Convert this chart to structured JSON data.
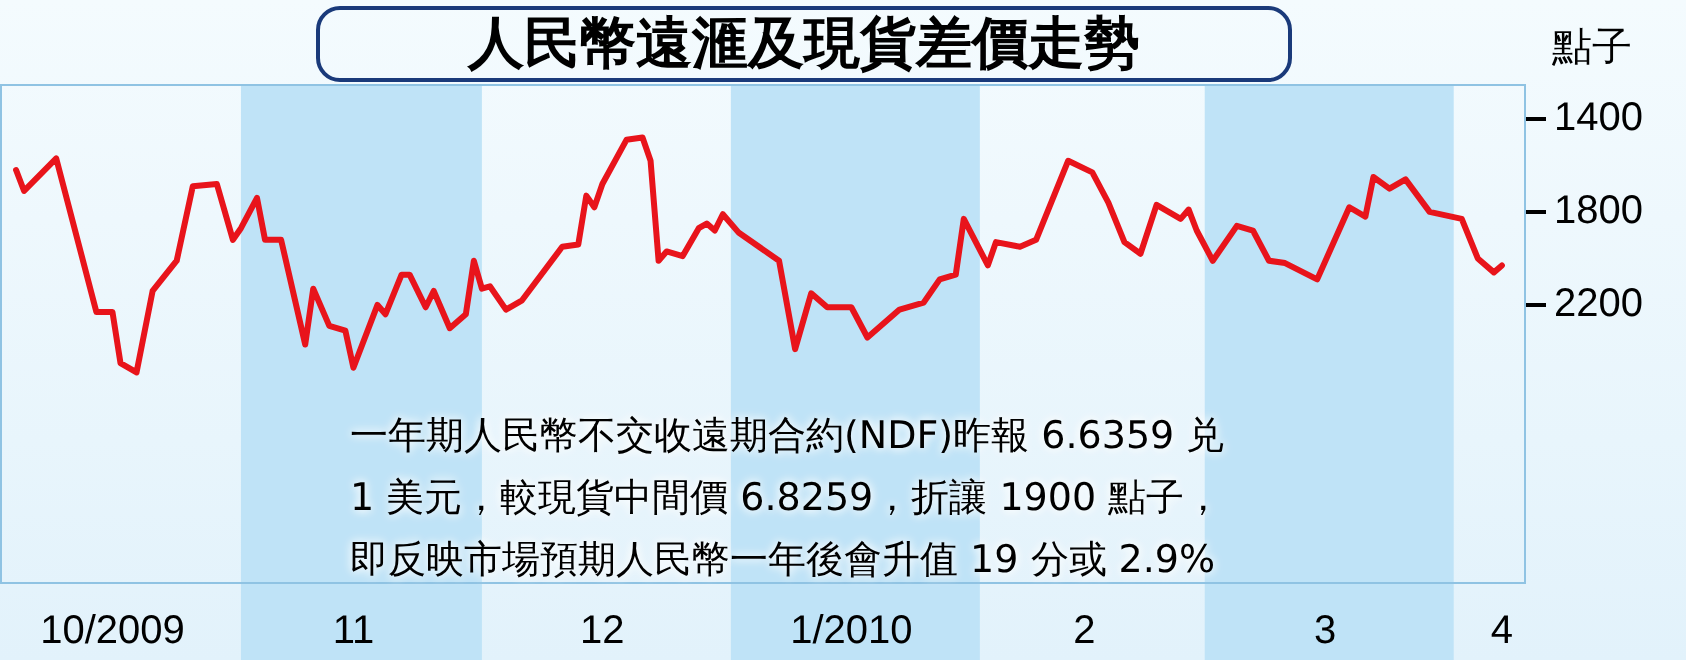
{
  "chart_data": {
    "type": "line",
    "title": "人民幣遠滙及現貨差價走勢",
    "ylabel": "點子",
    "annotations": [
      "一年期人民幣不交收遠期合約(NDF)昨報 6.6359 兑",
      "1 美元，較現貨中間價 6.8259，折讓 1900 點子，",
      "即反映市場預期人民幣一年後會升值 19 分或 2.9%"
    ],
    "x": [
      "2009-10-04",
      "2009-10-05",
      "2009-10-09",
      "2009-10-14",
      "2009-10-16",
      "2009-10-17",
      "2009-10-19",
      "2009-10-21",
      "2009-10-24",
      "2009-10-26",
      "2009-10-29",
      "2009-10-31",
      "2009-11-01",
      "2009-11-03",
      "2009-11-04",
      "2009-11-06",
      "2009-11-09",
      "2009-11-10",
      "2009-11-12",
      "2009-11-14",
      "2009-11-15",
      "2009-11-18",
      "2009-11-19",
      "2009-11-21",
      "2009-11-22",
      "2009-11-24",
      "2009-11-25",
      "2009-11-27",
      "2009-11-29",
      "2009-11-30",
      "2009-12-01",
      "2009-12-02",
      "2009-12-04",
      "2009-12-06",
      "2009-12-11",
      "2009-12-13",
      "2009-12-14",
      "2009-12-15",
      "2009-12-16",
      "2009-12-19",
      "2009-12-21",
      "2009-12-22",
      "2009-12-23",
      "2009-12-24",
      "2009-12-26",
      "2009-12-28",
      "2009-12-29",
      "2009-12-30",
      "2009-12-31",
      "2010-01-02",
      "2010-01-07",
      "2010-01-09",
      "2010-01-11",
      "2010-01-13",
      "2010-01-16",
      "2010-01-18",
      "2010-01-22",
      "2010-01-25",
      "2010-01-27",
      "2010-01-29",
      "2010-01-30",
      "2010-02-02",
      "2010-02-03",
      "2010-02-06",
      "2010-02-08",
      "2010-02-12",
      "2010-02-15",
      "2010-02-17",
      "2010-02-19",
      "2010-02-21",
      "2010-02-23",
      "2010-02-26",
      "2010-02-27",
      "2010-02-28",
      "2010-03-02",
      "2010-03-05",
      "2010-03-07",
      "2010-03-09",
      "2010-03-11",
      "2010-03-15",
      "2010-03-19",
      "2010-03-21",
      "2010-03-22",
      "2010-03-24",
      "2010-03-26",
      "2010-03-29",
      "2010-04-02",
      "2010-04-04",
      "2010-04-06",
      "2010-04-07"
    ],
    "series": [
      {
        "color": "#e8141b",
        "values": [
          1620,
          1710,
          1570,
          2230,
          2230,
          2450,
          2490,
          2140,
          2010,
          1690,
          1680,
          1920,
          1870,
          1740,
          1920,
          1920,
          2370,
          2130,
          2290,
          2310,
          2470,
          2200,
          2240,
          2070,
          2070,
          2210,
          2140,
          2300,
          2240,
          2010,
          2130,
          2120,
          2220,
          2180,
          1950,
          1940,
          1730,
          1780,
          1680,
          1490,
          1480,
          1580,
          2010,
          1970,
          1990,
          1870,
          1850,
          1880,
          1810,
          1890,
          2010,
          2390,
          2150,
          2210,
          2210,
          2340,
          2220,
          2190,
          2090,
          2070,
          1830,
          2030,
          1930,
          1950,
          1920,
          1580,
          1630,
          1760,
          1930,
          1980,
          1770,
          1830,
          1790,
          1880,
          2010,
          1860,
          1880,
          2010,
          2020,
          2090,
          1780,
          1820,
          1650,
          1700,
          1660,
          1800,
          1830,
          2000,
          2060,
          2030
        ]
      }
    ],
    "xlim": [
      "2009-10-02",
      "2010-04-10"
    ],
    "xticks": [
      {
        "value": "2009-10-16",
        "label": "10/2009"
      },
      {
        "value": "2009-11-15",
        "label": "11"
      },
      {
        "value": "2009-12-16",
        "label": "12"
      },
      {
        "value": "2010-01-16",
        "label": "1/2010"
      },
      {
        "value": "2010-02-14",
        "label": "2"
      },
      {
        "value": "2010-03-16",
        "label": "3"
      },
      {
        "value": "2010-04-07",
        "label": "4"
      }
    ],
    "ylim": [
      3400,
      1250
    ],
    "yticks": [
      1400,
      1800,
      2200
    ],
    "bands": [
      {
        "axis": "x",
        "from": "2009-11-01",
        "to": "2009-12-01",
        "color": "#bfe3f7"
      },
      {
        "axis": "x",
        "from": "2010-01-01",
        "to": "2010-02-01",
        "color": "#bfe3f7"
      },
      {
        "axis": "x",
        "from": "2010-03-01",
        "to": "2010-04-01",
        "color": "#bfe3f7"
      }
    ],
    "legend": false,
    "marker": "none",
    "line_style": "solid"
  }
}
